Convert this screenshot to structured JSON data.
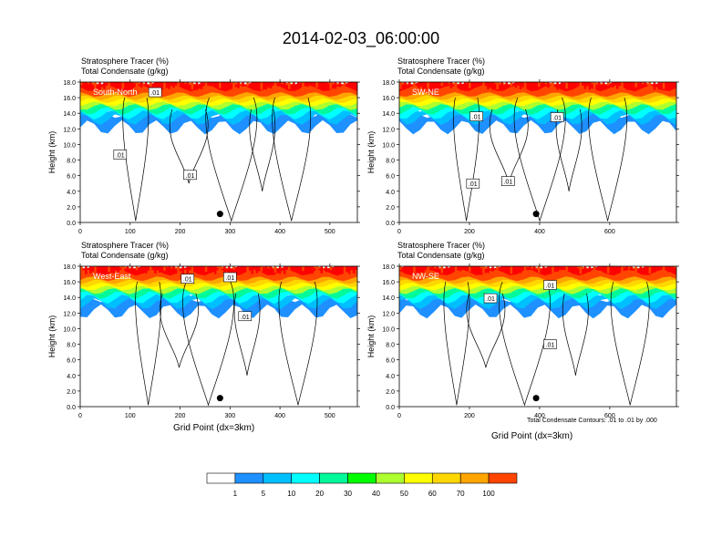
{
  "title": "2014-02-03_06:00:00",
  "panel_labels": {
    "line1": "Stratosphere Tracer   (%)",
    "line2": "Total Condensate   (g/kg)"
  },
  "ylabel": "Height (km)",
  "xlabel": "Grid Point (dx=3km)",
  "footnote": "Total Condensate Contours: .01 to .01 by .000",
  "y_ticks": [
    "0.0",
    "2.0",
    "4.0",
    "6.0",
    "8.0",
    "10.0",
    "12.0",
    "14.0",
    "16.0",
    "18.0"
  ],
  "colors": {
    "levels": [
      "#ffffff",
      "#1e90ff",
      "#00bfff",
      "#00ffff",
      "#00fa9a",
      "#00ff00",
      "#adff2f",
      "#ffff00",
      "#ffd700",
      "#ffa500",
      "#ff4500",
      "#ff0000"
    ]
  },
  "colorbar_labels": [
    "1",
    "5",
    "10",
    "20",
    "30",
    "40",
    "50",
    "60",
    "70",
    "100"
  ],
  "contour_labels": [
    ".01"
  ],
  "chart_data": [
    {
      "type": "heatmap",
      "name": "South-North",
      "x_ticks": [
        0,
        100,
        200,
        300,
        400,
        500
      ],
      "xlim": [
        0,
        555
      ],
      "ylim": [
        0,
        18
      ],
      "marker": {
        "x": 280,
        "y": 1.1
      },
      "contour_label_positions": [
        {
          "x": 80,
          "y": 8.7
        },
        {
          "x": 220,
          "y": 6.1
        },
        {
          "x": 150,
          "y": 16.7
        }
      ]
    },
    {
      "type": "heatmap",
      "name": "SW-NE",
      "x_ticks": [
        0,
        200,
        400,
        600
      ],
      "xlim": [
        0,
        790
      ],
      "ylim": [
        0,
        18
      ],
      "marker": {
        "x": 390,
        "y": 1.1
      },
      "contour_label_positions": [
        {
          "x": 210,
          "y": 5.0
        },
        {
          "x": 310,
          "y": 5.3
        },
        {
          "x": 220,
          "y": 13.6
        },
        {
          "x": 450,
          "y": 13.5
        }
      ]
    },
    {
      "type": "heatmap",
      "name": "West-East",
      "x_ticks": [
        0,
        100,
        200,
        300,
        400,
        500
      ],
      "xlim": [
        0,
        555
      ],
      "ylim": [
        0,
        18
      ],
      "marker": {
        "x": 280,
        "y": 1.1
      },
      "contour_label_positions": [
        {
          "x": 215,
          "y": 16.4
        },
        {
          "x": 330,
          "y": 11.6
        },
        {
          "x": 300,
          "y": 16.6
        }
      ]
    },
    {
      "type": "heatmap",
      "name": "NW-SE",
      "x_ticks": [
        0,
        200,
        400,
        600
      ],
      "xlim": [
        0,
        790
      ],
      "ylim": [
        0,
        18
      ],
      "marker": {
        "x": 390,
        "y": 1.1
      },
      "contour_label_positions": [
        {
          "x": 260,
          "y": 13.9
        },
        {
          "x": 430,
          "y": 15.6
        },
        {
          "x": 430,
          "y": 8.0
        }
      ]
    }
  ]
}
